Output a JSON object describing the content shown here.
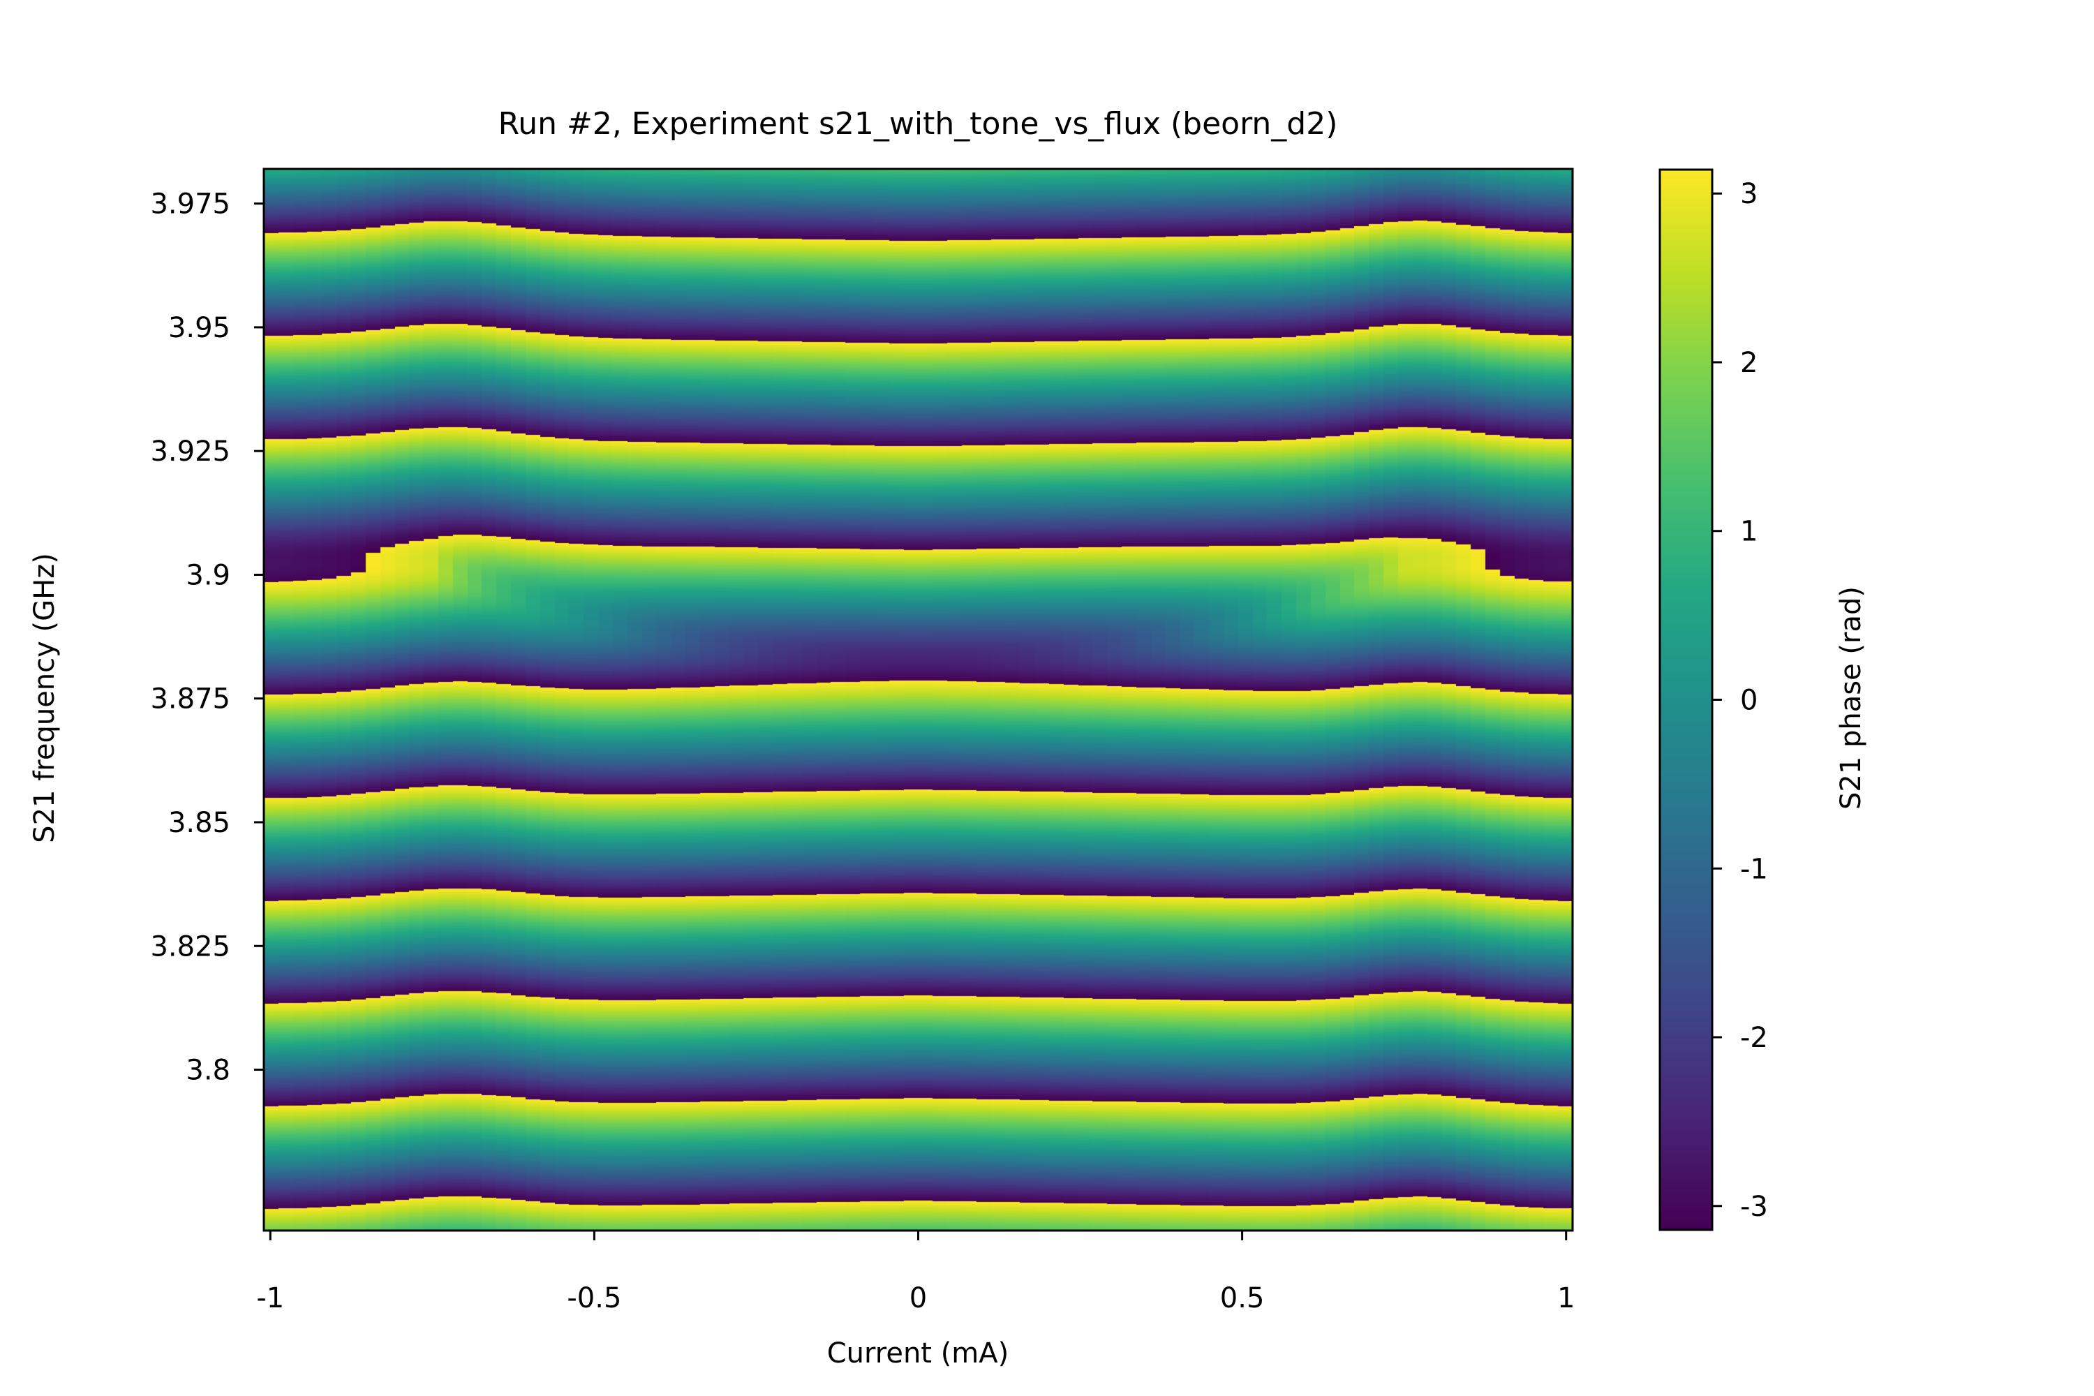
{
  "chart_data": {
    "type": "heatmap",
    "title": "Run #2, Experiment s21_with_tone_vs_flux (beorn_d2)",
    "xlabel": "Current (mA)",
    "ylabel": "S21 frequency (GHz)",
    "xlim": [
      -1.01,
      1.01
    ],
    "ylim": [
      3.7675,
      3.982
    ],
    "x_ticks": [
      -1,
      -0.5,
      0,
      0.5,
      1
    ],
    "x_tick_labels": [
      "-1",
      "-0.5",
      "0",
      "0.5",
      "1"
    ],
    "y_ticks": [
      3.8,
      3.825,
      3.85,
      3.875,
      3.9,
      3.925,
      3.95,
      3.975
    ],
    "y_tick_labels": [
      "3.8",
      "3.825",
      "3.85",
      "3.875",
      "3.9",
      "3.925",
      "3.95",
      "3.975"
    ],
    "colorbar": {
      "label": "S21 phase (rad)",
      "range": [
        -3.14159,
        3.14159
      ],
      "ticks": [
        -3,
        -2,
        -1,
        0,
        1,
        2,
        3
      ],
      "tick_labels": [
        "-3",
        "-2",
        "-1",
        "0",
        "1",
        "2",
        "3"
      ],
      "colormap": "viridis"
    },
    "phase_wrap_frequency_GHz_at_zero_current": [
      3.7688,
      3.7895,
      3.81,
      3.8303,
      3.8505,
      3.8705,
      3.8916,
      3.9132,
      3.9335,
      3.9543,
      3.9755
    ],
    "wrap_period_GHz": 0.0207,
    "resonance_center_GHz": 3.883,
    "grid": false,
    "legend": "none"
  }
}
